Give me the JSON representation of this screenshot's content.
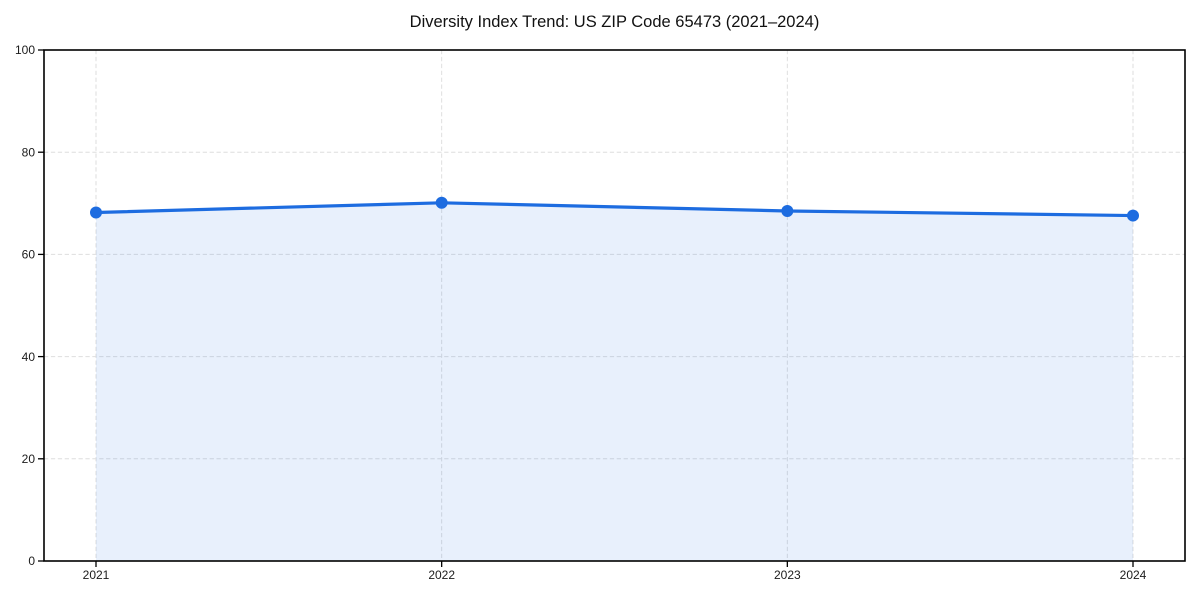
{
  "page": {
    "background": "#ffffff"
  },
  "chart_data": {
    "type": "area",
    "title": "Diversity Index Trend: US ZIP Code 65473 (2021–2024)",
    "categories": [
      "2021",
      "2022",
      "2023",
      "2024"
    ],
    "series": [
      {
        "name": "Diversity Index",
        "values": [
          68.2,
          70.1,
          68.5,
          67.6
        ]
      }
    ],
    "xlabel": "",
    "ylabel": "",
    "ylim": [
      0,
      100
    ],
    "yticks": [
      0,
      20,
      40,
      60,
      80,
      100
    ],
    "grid": true,
    "grid_style": "dashed",
    "legend": "none",
    "marker": "circle",
    "colors": {
      "line": "#1d6ce0",
      "marker": "#1d6ce0",
      "fill": "#1d6ce0",
      "fill_opacity": "0.1",
      "grid": "#dedede",
      "spine": "#000000",
      "tick_label": "#1c1c1c",
      "title": "#111111",
      "background": "#ffffff"
    }
  }
}
